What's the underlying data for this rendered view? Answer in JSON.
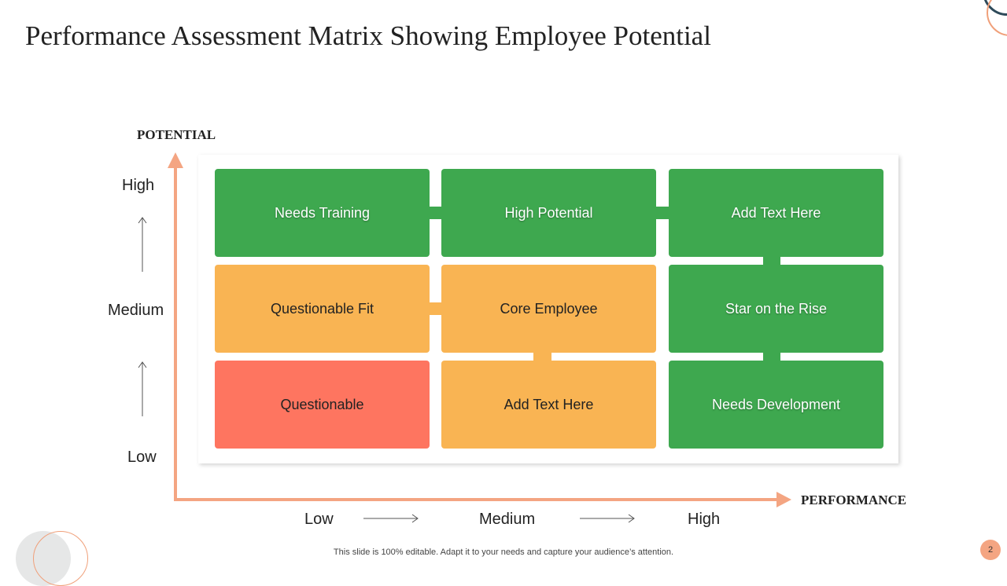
{
  "title": "Performance Assessment Matrix Showing Employee Potential",
  "y_axis": {
    "title": "POTENTIAL",
    "levels": [
      "High",
      "Medium",
      "Low"
    ]
  },
  "x_axis": {
    "title": "PERFORMANCE",
    "levels": [
      "Low",
      "Medium",
      "High"
    ]
  },
  "matrix": {
    "rows": [
      [
        {
          "label": "Needs Training",
          "color": "green"
        },
        {
          "label": "High Potential",
          "color": "green"
        },
        {
          "label": "Add Text Here",
          "color": "green"
        }
      ],
      [
        {
          "label": "Questionable Fit",
          "color": "orange"
        },
        {
          "label": "Core Employee",
          "color": "orange"
        },
        {
          "label": "Star on the Rise",
          "color": "green"
        }
      ],
      [
        {
          "label": "Questionable",
          "color": "red"
        },
        {
          "label": "Add Text Here",
          "color": "orange"
        },
        {
          "label": "Needs Development",
          "color": "green"
        }
      ]
    ]
  },
  "colors": {
    "green": "#3ea84f",
    "orange": "#f9b453",
    "red": "#fe7560",
    "axis": "#f4a582"
  },
  "footer": "This slide is 100% editable. Adapt it to your needs and capture your audience’s attention.",
  "page_number": "2"
}
